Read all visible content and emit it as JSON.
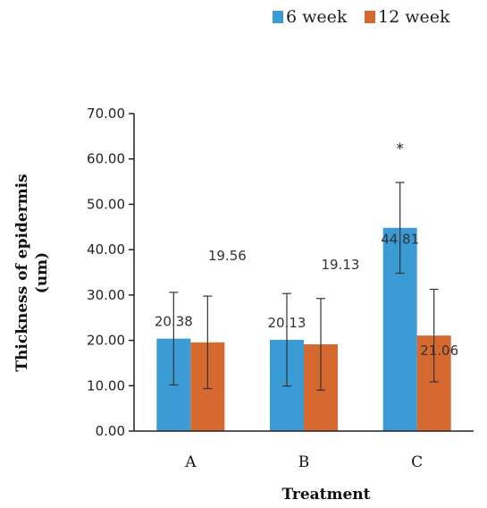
{
  "chart_data": {
    "type": "bar",
    "categories": [
      "A",
      "B",
      "C"
    ],
    "series": [
      {
        "name": "6 week",
        "color": "#3a9bd5",
        "values": [
          20.38,
          20.13,
          44.81
        ],
        "errors": [
          10.2,
          10.2,
          10.0
        ],
        "labels": [
          "20.38",
          "20.13",
          "44.81"
        ]
      },
      {
        "name": "12 week",
        "color": "#d6692f",
        "values": [
          19.56,
          19.13,
          21.06
        ],
        "errors": [
          10.2,
          10.1,
          10.2
        ],
        "labels": [
          "19.56",
          "19.13",
          "21.06"
        ]
      }
    ],
    "ylim": [
      0,
      70
    ],
    "yticks": [
      "0.00",
      "10.00",
      "20.00",
      "30.00",
      "40.00",
      "50.00",
      "60.00",
      "70.00"
    ],
    "ylabel_line1": "Thickness of epidermis",
    "ylabel_line2": "(um)",
    "xlabel": "Treatment",
    "annotation": "*",
    "legend_position": "top-right",
    "grid": false
  }
}
